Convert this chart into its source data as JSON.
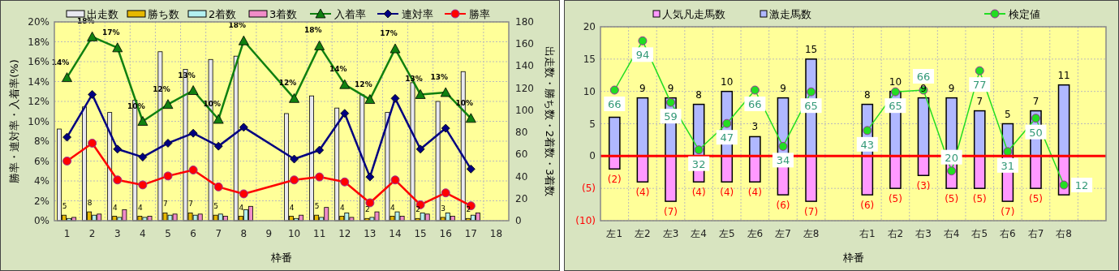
{
  "chart_data": [
    {
      "type": "bar",
      "xlabel": "枠番",
      "ylabel": "勝率・連対率・入着率(%)",
      "y2label": "出走数・勝ち数・2着数・3着数",
      "x": [
        1,
        2,
        3,
        4,
        5,
        6,
        7,
        8,
        10,
        11,
        12,
        13,
        14,
        15,
        16,
        17
      ],
      "xlim": [
        0.5,
        18.5
      ],
      "xticks": [
        1,
        2,
        3,
        4,
        5,
        6,
        7,
        8,
        9,
        10,
        11,
        12,
        13,
        14,
        15,
        16,
        17,
        18
      ],
      "series": [
        {
          "name": "出走数",
          "color": "#e8e8f0",
          "axis": "y2",
          "values": [
            83,
            103,
            98,
            109,
            153,
            137,
            146,
            149,
            97,
            113,
            102,
            114,
            98,
            125,
            108,
            135
          ]
        },
        {
          "name": "勝ち数",
          "color": "#e6b800",
          "axis": "y2",
          "values": [
            5,
            8,
            4,
            4,
            7,
            7,
            5,
            4,
            4,
            5,
            4,
            2,
            4,
            2,
            3,
            2
          ],
          "value_labels": [
            "5",
            "8",
            "4",
            "4",
            "7",
            "7",
            "5",
            "4",
            "4",
            "5",
            "4",
            "2",
            "4",
            "2",
            "3",
            "2"
          ]
        },
        {
          "name": "2着数",
          "color": "#b3f0f0",
          "axis": "y2",
          "values": [
            2,
            5,
            3,
            3,
            5,
            5,
            6,
            10,
            2,
            3,
            7,
            3,
            8,
            7,
            7,
            5
          ]
        },
        {
          "name": "3着数",
          "color": "#f08cc8",
          "axis": "y2",
          "values": [
            3,
            6,
            10,
            4,
            6,
            6,
            4,
            13,
            5,
            12,
            3,
            8,
            4,
            6,
            4,
            7
          ]
        },
        {
          "name": "入着率",
          "type": "line",
          "color": "#108010",
          "marker": "triangle",
          "values": [
            14.4,
            18.5,
            17.4,
            10.0,
            11.7,
            13.1,
            10.2,
            18.1,
            12.3,
            17.6,
            13.7,
            12.2,
            17.3,
            12.7,
            12.9,
            10.3
          ],
          "value_labels": [
            "14%",
            "18%",
            "17%",
            "10%",
            "12%",
            "13%",
            "10%",
            "18%",
            "12%",
            "18%",
            "14%",
            "12%",
            "17%",
            "13%",
            "13%",
            "10%"
          ]
        },
        {
          "name": "連対率",
          "type": "line",
          "color": "#000080",
          "marker": "diamond",
          "values": [
            8.4,
            12.7,
            7.2,
            6.4,
            7.8,
            8.8,
            7.5,
            9.4,
            6.2,
            7.1,
            10.8,
            4.4,
            12.3,
            7.2,
            9.3,
            5.2
          ]
        },
        {
          "name": "勝率",
          "type": "line",
          "color": "#ff0000",
          "marker": "circle",
          "values": [
            6.0,
            7.8,
            4.1,
            3.6,
            4.5,
            5.1,
            3.4,
            2.7,
            4.1,
            4.4,
            3.9,
            1.8,
            4.1,
            1.6,
            2.8,
            1.5
          ]
        }
      ],
      "ylim": [
        0,
        20
      ],
      "yticks": [
        {
          "value": 0,
          "label": "0%"
        },
        {
          "value": 2,
          "label": "2%"
        },
        {
          "value": 4,
          "label": "4%"
        },
        {
          "value": 6,
          "label": "6%"
        },
        {
          "value": 8,
          "label": "8%"
        },
        {
          "value": 10,
          "label": "10%"
        },
        {
          "value": 12,
          "label": "12%"
        },
        {
          "value": 14,
          "label": "14%"
        },
        {
          "value": 16,
          "label": "16%"
        },
        {
          "value": 18,
          "label": "18%"
        },
        {
          "value": 20,
          "label": "20%"
        }
      ],
      "y2lim": [
        0,
        180
      ],
      "y2ticks": [
        0,
        20,
        40,
        60,
        80,
        100,
        120,
        140,
        160,
        180
      ],
      "grid": true,
      "legend": "top"
    },
    {
      "type": "bar",
      "stacked": true,
      "xlabel": "枠番",
      "categories": [
        "左1",
        "左2",
        "左3",
        "左4",
        "左5",
        "左6",
        "左7",
        "左8",
        null,
        "右1",
        "右2",
        "右3",
        "右4",
        "右5",
        "右6",
        "右7",
        "右8",
        null
      ],
      "series": [
        {
          "name": "人気凡走馬数",
          "color": "#ff99ff",
          "values": [
            -2,
            -4,
            -7,
            -4,
            -4,
            -4,
            -6,
            -7,
            null,
            -6,
            -5,
            -3,
            -5,
            -5,
            -7,
            -5,
            -6,
            null
          ],
          "value_labels": [
            "(2)",
            "(4)",
            "(7)",
            "(4)",
            "(4)",
            "(4)",
            "(6)",
            "(7)",
            null,
            "(6)",
            "(5)",
            "(3)",
            "(5)",
            "(5)",
            "(7)",
            "(5)",
            null,
            null
          ]
        },
        {
          "name": "激走馬数",
          "color": "#b0b8ff",
          "values": [
            6,
            9,
            9,
            8,
            10,
            3,
            9,
            15,
            null,
            8,
            10,
            9,
            9,
            7,
            5,
            7,
            11,
            null
          ],
          "value_labels": [
            null,
            "9",
            "9",
            "8",
            "10",
            "3",
            "9",
            "15",
            null,
            "8",
            "10",
            "9",
            "9",
            "7",
            "5",
            "7",
            "11",
            null
          ]
        },
        {
          "name": "検定値",
          "type": "line",
          "color": "#22dd22",
          "marker": "circle",
          "axis": "y2",
          "values": [
            66,
            94,
            59,
            32,
            47,
            66,
            34,
            65,
            null,
            43,
            65,
            66,
            20,
            77,
            31,
            50,
            12,
            null
          ],
          "value_labels": [
            "66",
            "94",
            "59",
            "32",
            "47",
            "66",
            "34",
            "65",
            null,
            "43",
            "65",
            "66",
            "20",
            "77",
            "31",
            "50",
            "12",
            null
          ]
        }
      ],
      "ylim": [
        -10,
        20
      ],
      "yticks": [
        {
          "value": -10,
          "label": "(10)"
        },
        {
          "value": -5,
          "label": "(5)"
        },
        0,
        5,
        10,
        15,
        20
      ],
      "y2lim": [
        -8.3,
        102
      ],
      "grid": true,
      "legend": "top",
      "ref_lines": [
        {
          "axis": "y",
          "value": 0,
          "color": "#ff0000"
        }
      ]
    }
  ]
}
